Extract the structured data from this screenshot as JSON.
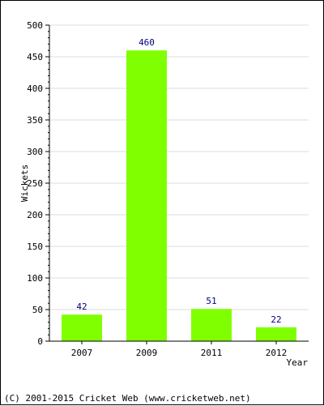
{
  "chart_data": {
    "type": "bar",
    "categories": [
      "2007",
      "2009",
      "2011",
      "2012"
    ],
    "values": [
      42,
      460,
      51,
      22
    ],
    "data_labels": [
      "42",
      "460",
      "51",
      "22"
    ],
    "title": "",
    "xlabel": "Year",
    "ylabel": "Wickets",
    "ylim": [
      0,
      500
    ],
    "yticks": [
      "0",
      "50",
      "100",
      "150",
      "200",
      "250",
      "300",
      "350",
      "400",
      "450",
      "500"
    ],
    "ytick_values": [
      0,
      50,
      100,
      150,
      200,
      250,
      300,
      350,
      400,
      450,
      500
    ],
    "grid": true,
    "bar_color": "#80ff00",
    "grid_color": "#dddddd"
  },
  "footer": {
    "copyright": "(C) 2001-2015 Cricket Web (www.cricketweb.net)"
  }
}
